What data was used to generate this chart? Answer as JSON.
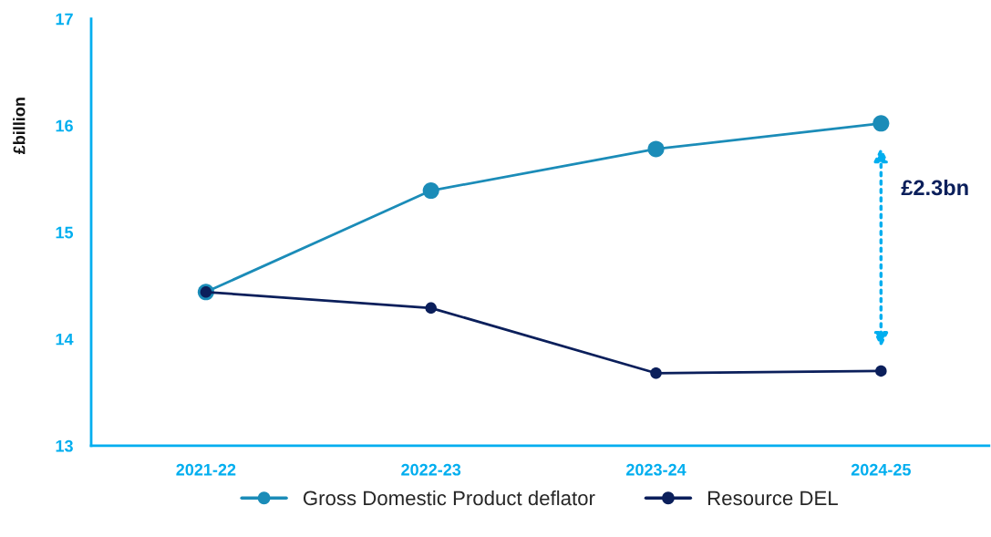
{
  "chart_data": {
    "type": "line",
    "ylabel": "£billion",
    "categories": [
      "2021-22",
      "2022-23",
      "2023-24",
      "2024-25"
    ],
    "series": [
      {
        "name": "Gross Domestic Product deflator",
        "color": "#1b8cb8",
        "values": [
          14.44,
          15.39,
          15.78,
          16.02
        ]
      },
      {
        "name": "Resource DEL",
        "color": "#0b1f5b",
        "values": [
          14.44,
          14.29,
          13.68,
          13.7
        ]
      }
    ],
    "ylim": [
      13,
      17
    ],
    "yticks": [
      13,
      14,
      15,
      16,
      17
    ],
    "annotations": [
      "£2.3bn"
    ],
    "grid": false,
    "legend": "bottom",
    "marker": "circle",
    "line_style": "solid"
  }
}
